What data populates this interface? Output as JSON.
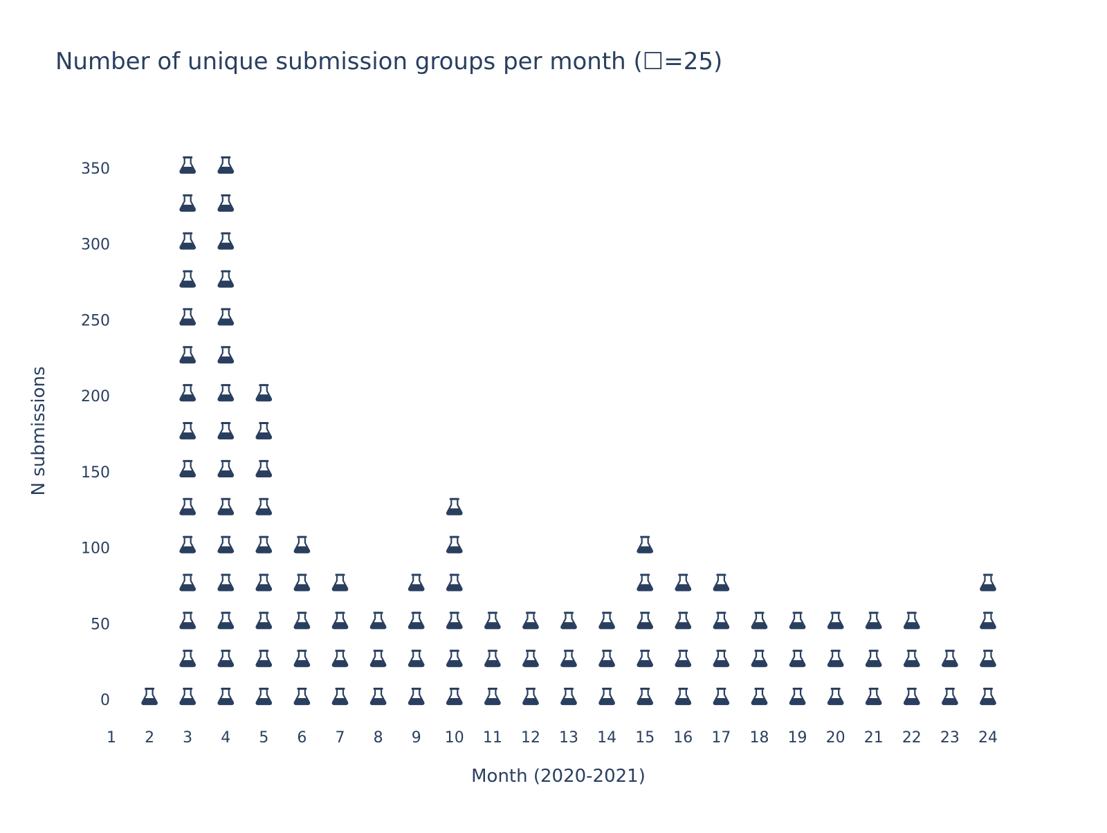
{
  "chart_data": {
    "type": "scatter",
    "title": "Number of unique submission groups per month (☐=25)",
    "xlabel": "Month (2020-2021)",
    "ylabel": "N submissions",
    "x_ticks": [
      "1",
      "2",
      "3",
      "4",
      "5",
      "6",
      "7",
      "8",
      "9",
      "10",
      "11",
      "12",
      "13",
      "14",
      "15",
      "16",
      "17",
      "18",
      "19",
      "20",
      "21",
      "22",
      "23",
      "24"
    ],
    "y_ticks": [
      "0",
      "50",
      "100",
      "150",
      "200",
      "250",
      "300",
      "350"
    ],
    "xlim": [
      1,
      24
    ],
    "ylim": [
      0,
      350
    ],
    "icon_unit": 25,
    "marker": "flask-icon",
    "marker_color": "#2a3f5f",
    "grid": false,
    "x": [
      2,
      3,
      4,
      5,
      6,
      7,
      8,
      9,
      10,
      11,
      12,
      13,
      14,
      15,
      16,
      17,
      18,
      19,
      20,
      21,
      22,
      23,
      24
    ],
    "values": [
      0,
      350,
      350,
      200,
      100,
      75,
      50,
      75,
      125,
      50,
      50,
      50,
      50,
      100,
      75,
      75,
      50,
      50,
      50,
      50,
      50,
      25,
      75
    ]
  }
}
